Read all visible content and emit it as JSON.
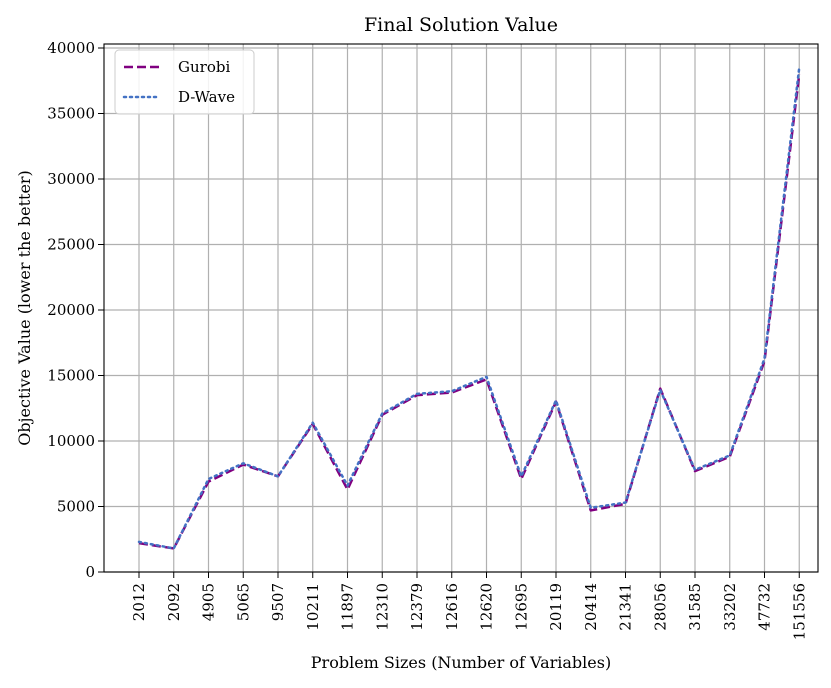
{
  "chart_data": {
    "type": "line",
    "title": "Final Solution Value",
    "xlabel": "Problem Sizes (Number of Variables)",
    "ylabel": "Objective Value (lower the better)",
    "categories": [
      "2012",
      "2092",
      "4905",
      "5065",
      "9507",
      "10211",
      "11897",
      "12310",
      "12379",
      "12616",
      "12620",
      "12695",
      "20119",
      "20414",
      "21341",
      "28056",
      "31585",
      "33202",
      "47732",
      "151556"
    ],
    "ylim": [
      0,
      40000
    ],
    "yticks": [
      0,
      5000,
      10000,
      15000,
      20000,
      25000,
      30000,
      35000,
      40000
    ],
    "yticklabels": [
      "0",
      "5000",
      "10000",
      "15000",
      "20000",
      "25000",
      "30000",
      "35000",
      "40000"
    ],
    "grid": true,
    "legend_position": "top-left",
    "series": [
      {
        "name": "Gurobi",
        "color": "#800080",
        "style": "dashed",
        "values": [
          2200,
          1800,
          6900,
          8200,
          7300,
          11300,
          6300,
          12000,
          13500,
          13700,
          14700,
          7100,
          13000,
          4700,
          5200,
          14000,
          7700,
          8800,
          16100,
          38000
        ]
      },
      {
        "name": "D-Wave",
        "color": "#4472C4",
        "style": "dotted",
        "values": [
          2300,
          1800,
          7100,
          8300,
          7300,
          11400,
          6600,
          12100,
          13600,
          13800,
          14900,
          7300,
          13100,
          4900,
          5300,
          13900,
          7800,
          8900,
          16300,
          38500
        ]
      }
    ]
  }
}
